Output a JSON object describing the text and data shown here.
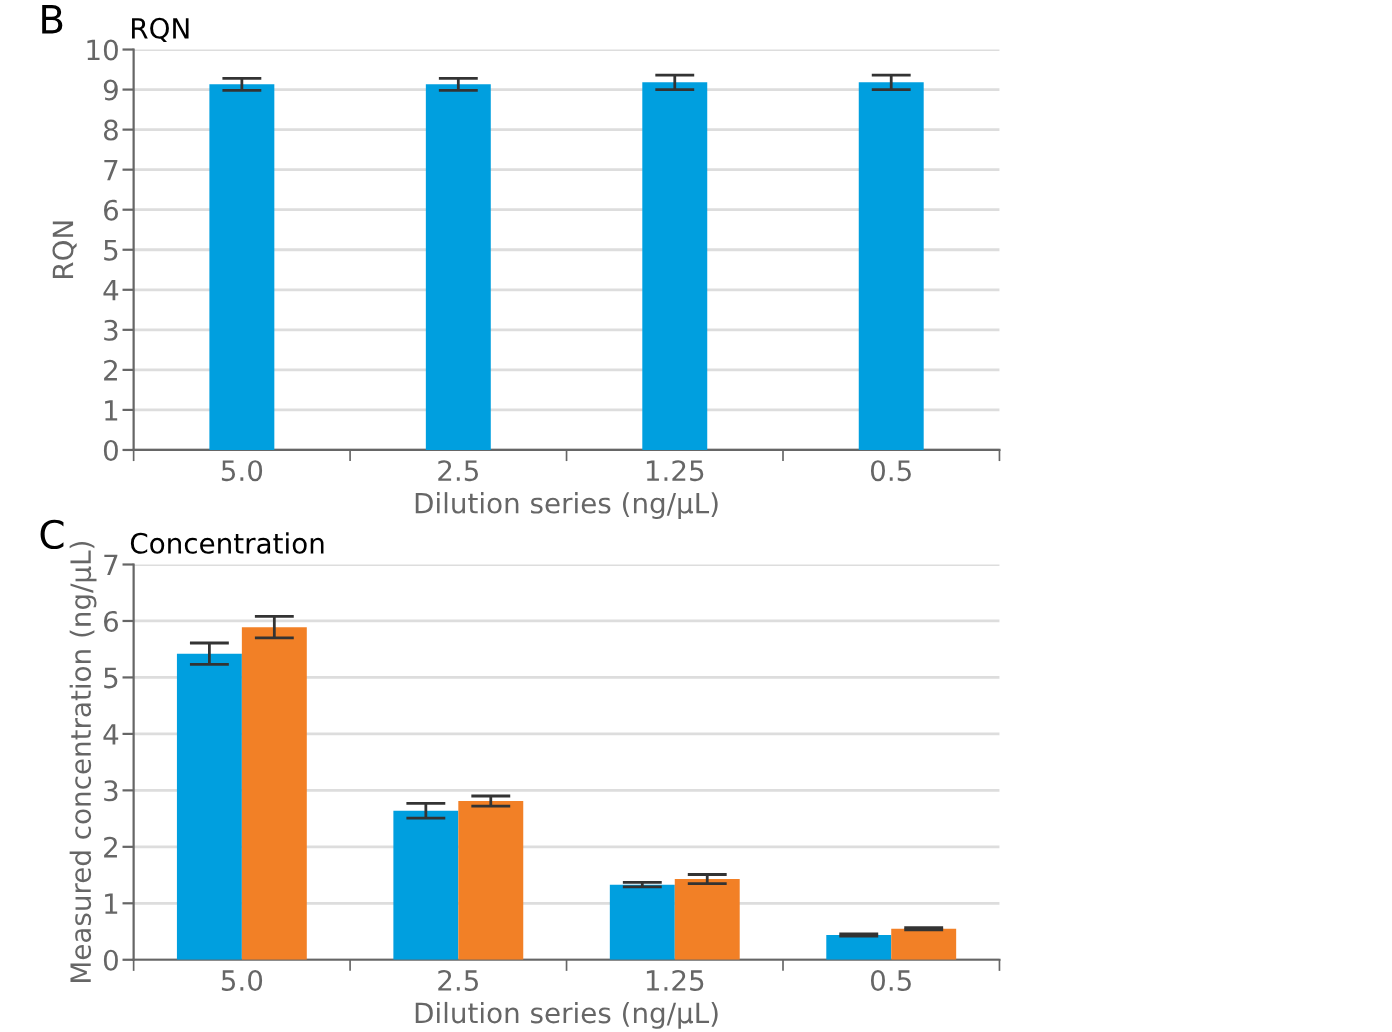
{
  "chart_data": [
    {
      "type": "bar",
      "title": "RQN",
      "ylabel": "RQN",
      "xlabel": "Dilution series (ng/µL)",
      "annotations": [
        "B"
      ],
      "categories": [
        "5.0",
        "2.5",
        "1.25",
        "0.5"
      ],
      "series": [
        {
          "color": "#009fdf",
          "values": [
            9.13,
            9.13,
            9.18,
            9.18
          ],
          "errors": [
            0.15,
            0.15,
            0.18,
            0.18
          ]
        }
      ],
      "ylim": [
        0,
        10
      ],
      "yticks": [
        0,
        1,
        2,
        3,
        4,
        5,
        6,
        7,
        8,
        9,
        10
      ],
      "grid": "y"
    },
    {
      "type": "bar",
      "title": "Concentration",
      "ylabel": "Measured concentration (ng/µL)",
      "xlabel": "Dilution series (ng/µL)",
      "annotations": [
        "C"
      ],
      "categories": [
        "5.0",
        "2.5",
        "1.25",
        "0.5"
      ],
      "series": [
        {
          "color": "#009fdf",
          "values": [
            5.42,
            2.64,
            1.33,
            0.44
          ],
          "errors": [
            0.19,
            0.13,
            0.04,
            0.02
          ]
        },
        {
          "color": "#f28026",
          "values": [
            5.89,
            2.81,
            1.43,
            0.55
          ],
          "errors": [
            0.19,
            0.09,
            0.08,
            0.02
          ]
        }
      ],
      "ylim": [
        0,
        7
      ],
      "yticks": [
        0,
        1,
        2,
        3,
        4,
        5,
        6,
        7
      ],
      "grid": "y"
    }
  ]
}
